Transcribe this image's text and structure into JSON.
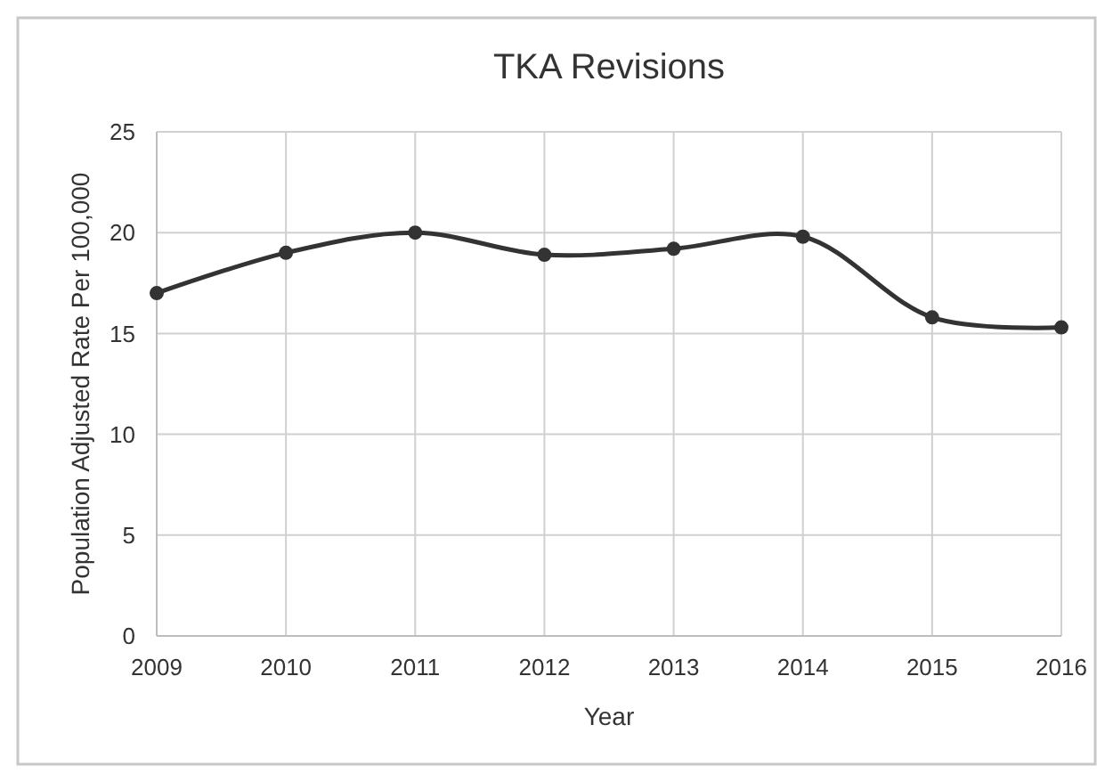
{
  "chart_data": {
    "type": "line",
    "title": "TKA Revisions",
    "xlabel": "Year",
    "ylabel": "Population Adjusted Rate Per 100,000",
    "x": [
      2009,
      2010,
      2011,
      2012,
      2013,
      2014,
      2015,
      2016
    ],
    "series": [
      {
        "color": "#333333",
        "values": [
          17,
          19,
          20,
          18.9,
          19.2,
          19.8,
          15.8,
          15.3
        ]
      }
    ],
    "xlim": [
      2009,
      2016
    ],
    "xticks": [
      2009,
      2010,
      2011,
      2012,
      2013,
      2014,
      2015,
      2016
    ],
    "ylim": [
      0,
      25
    ],
    "yticks": [
      0,
      5,
      10,
      15,
      20,
      25
    ],
    "grid": true,
    "marker": "circle",
    "line_style": "solid"
  }
}
